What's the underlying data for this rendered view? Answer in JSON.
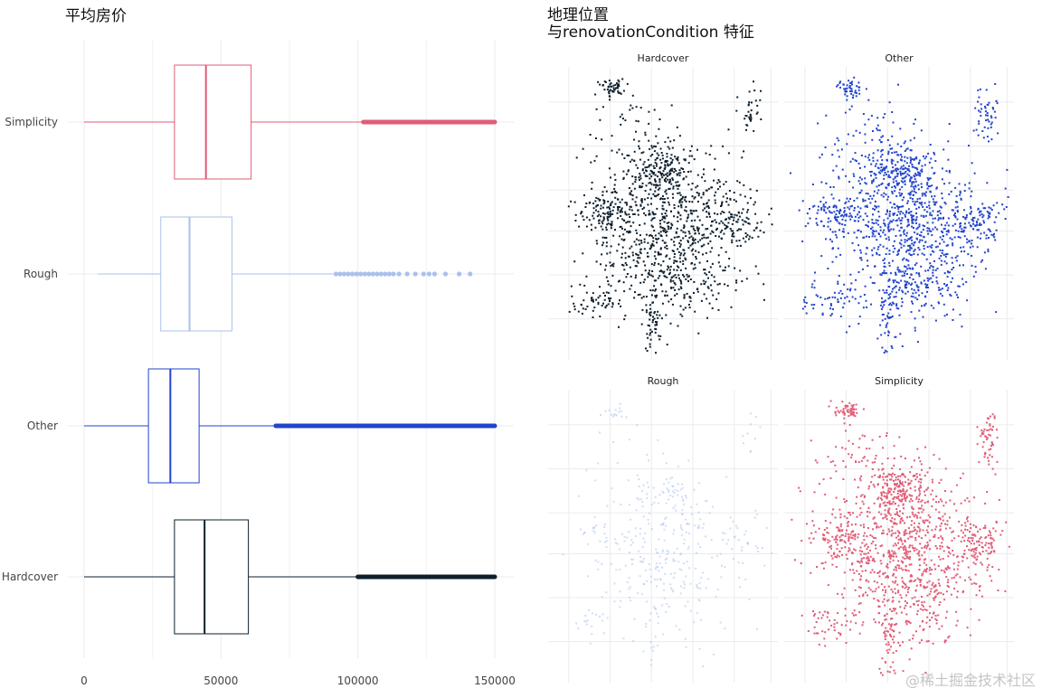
{
  "left_title": "平均房价",
  "right_title_line1": "地理位置",
  "right_title_line2": "与renovationCondition 特征",
  "watermark": "@稀土掘金技术社区",
  "colors": {
    "Simplicity": "#e05c76",
    "Rough": "#a9c1ec",
    "Other": "#2244cc",
    "Hardcover": "#0d1f2d",
    "grid": "#ebebeb"
  },
  "chart_data": [
    {
      "type": "boxplot",
      "title": "平均房价",
      "orientation": "horizontal",
      "categories": [
        "Simplicity",
        "Rough",
        "Other",
        "Hardcover"
      ],
      "xlim": [
        0,
        155000
      ],
      "xticks": [
        0,
        50000,
        100000,
        150000
      ],
      "tick_labels": [
        "0",
        "50000",
        "100000",
        "150000"
      ],
      "grid": true,
      "boxes": [
        {
          "name": "Simplicity",
          "whisker_low": 0,
          "q1": 33000,
          "median": 44500,
          "q3": 61000,
          "whisker_high": 102000,
          "outliers_continuous": [
            102000,
            150000
          ],
          "outliers": []
        },
        {
          "name": "Rough",
          "whisker_low": 5000,
          "q1": 28000,
          "median": 38500,
          "q3": 54000,
          "whisker_high": 91000,
          "outliers_continuous": [],
          "outliers": [
            92000,
            93500,
            95000,
            96500,
            98000,
            99500,
            101000,
            102500,
            104000,
            105500,
            107000,
            108500,
            110000,
            111500,
            113000,
            115000,
            118000,
            121000,
            124000,
            126000,
            128000,
            132000,
            137000,
            141000
          ]
        },
        {
          "name": "Other",
          "whisker_low": 0,
          "q1": 23500,
          "median": 31500,
          "q3": 42000,
          "whisker_high": 70000,
          "outliers_continuous": [
            70000,
            150000
          ],
          "outliers": []
        },
        {
          "name": "Hardcover",
          "whisker_low": 0,
          "q1": 33000,
          "median": 44000,
          "q3": 60000,
          "whisker_high": 100000,
          "outliers_continuous": [
            100000,
            150000
          ],
          "outliers": []
        }
      ]
    },
    {
      "type": "scatter",
      "title": "地理位置 与renovationCondition 特征",
      "layout": "facet_wrap_2x2",
      "facets": [
        "Hardcover",
        "Other",
        "Rough",
        "Simplicity"
      ],
      "axes": "none",
      "grid": true
    }
  ]
}
